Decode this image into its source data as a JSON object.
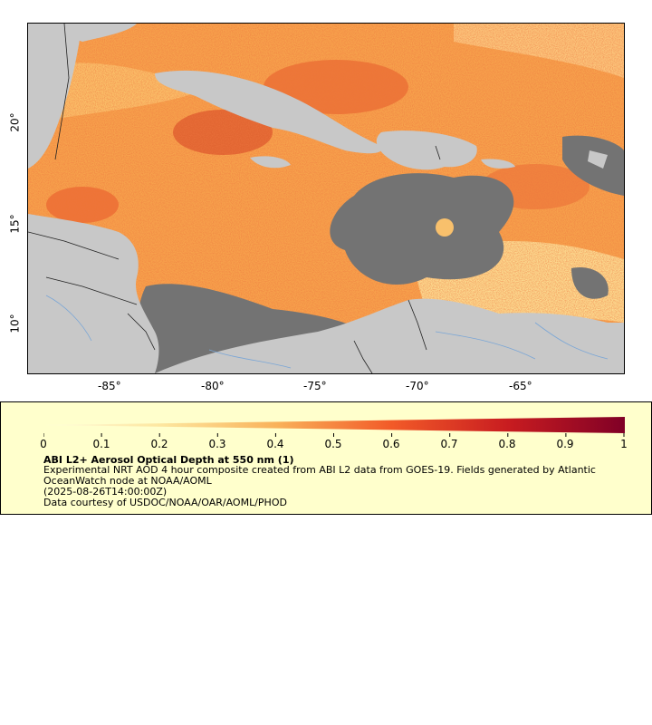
{
  "map": {
    "x_ticks": [
      "-85°",
      "-80°",
      "-75°",
      "-70°",
      "-65°"
    ],
    "y_ticks": [
      "20°",
      "15°",
      "10°"
    ],
    "colors": {
      "land": "#c8c8c8",
      "no_data": "#737373",
      "ocean_base": "#f6a04a",
      "borders": "#222222",
      "rivers": "#7aa6d6"
    }
  },
  "legend": {
    "ticks": [
      "0",
      "0.1",
      "0.2",
      "0.3",
      "0.4",
      "0.5",
      "0.6",
      "0.7",
      "0.8",
      "0.9",
      "1"
    ],
    "title": "ABI L2+ Aerosol Optical Depth at 550 nm (1)",
    "desc_line1": "Experimental NRT AOD 4 hour composite created from ABI L2 data from GOES-19. Fields generated by Atlantic",
    "desc_line2": "OceanWatch node at NOAA/AOML",
    "timestamp": "(2025-08-26T14:00:00Z)",
    "credit": "Data courtesy of USDOC/NOAA/OAR/AOML/PHOD",
    "color_start": "#fffde0",
    "color_mid": "#f25a28",
    "color_end": "#800026"
  }
}
